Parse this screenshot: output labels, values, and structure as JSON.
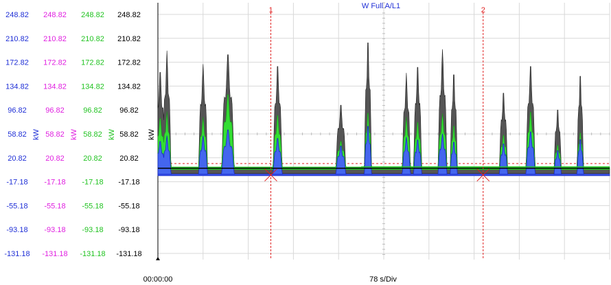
{
  "title": "W Full A/L1",
  "ticks": [
    "248.82",
    "210.82",
    "172.82",
    "134.82",
    "96.82",
    "58.82",
    "20.82",
    "-17.18",
    "-55.18",
    "-93.18",
    "-131.18"
  ],
  "unit": "kW",
  "scale_columns": [
    {
      "color": "#1f2fd6"
    },
    {
      "color": "#e020e0"
    },
    {
      "color": "#22c322"
    },
    {
      "color": "#000000"
    }
  ],
  "time_start": "00:00:00",
  "time_per_div": "78 s/Div",
  "cursors": [
    {
      "label": "1",
      "color": "#e02020"
    },
    {
      "label": "2",
      "color": "#e02020"
    }
  ],
  "chart_data": {
    "type": "line",
    "title": "W Full A/L1",
    "ylim": [
      -131.18,
      248.82
    ],
    "xlim": [
      0,
      10
    ],
    "x_units": "divisions (78 s/Div)",
    "grid": true,
    "cursors_x_div": [
      2.5,
      7.2
    ],
    "reference_lines": [
      {
        "color": "#e02020",
        "y": 11
      },
      {
        "color": "#e02020",
        "y": 0
      },
      {
        "color": "#00aaaa",
        "y": -6
      }
    ],
    "baselines": {
      "black": 4,
      "green": 6,
      "blue": -5
    },
    "peaks": [
      {
        "x": 0.05,
        "black": 150,
        "green": 80,
        "blue": 45,
        "w": 0.22
      },
      {
        "x": 0.2,
        "black": 178,
        "green": 88,
        "blue": 52,
        "w": 0.18
      },
      {
        "x": 1.0,
        "black": 158,
        "green": 80,
        "blue": 52,
        "w": 0.2
      },
      {
        "x": 1.55,
        "black": 175,
        "green": 115,
        "blue": 62,
        "w": 0.28
      },
      {
        "x": 2.65,
        "black": 160,
        "green": 85,
        "blue": 50,
        "w": 0.2
      },
      {
        "x": 4.05,
        "black": 100,
        "green": 45,
        "blue": 38,
        "w": 0.22
      },
      {
        "x": 4.65,
        "black": 200,
        "green": 90,
        "blue": 70,
        "w": 0.16
      },
      {
        "x": 5.5,
        "black": 145,
        "green": 80,
        "blue": 50,
        "w": 0.18
      },
      {
        "x": 5.75,
        "black": 160,
        "green": 75,
        "blue": 48,
        "w": 0.18
      },
      {
        "x": 6.3,
        "black": 180,
        "green": 85,
        "blue": 55,
        "w": 0.2
      },
      {
        "x": 6.55,
        "black": 150,
        "green": 70,
        "blue": 45,
        "w": 0.16
      },
      {
        "x": 7.65,
        "black": 120,
        "green": 55,
        "blue": 42,
        "w": 0.18
      },
      {
        "x": 8.25,
        "black": 160,
        "green": 90,
        "blue": 60,
        "w": 0.2
      },
      {
        "x": 8.85,
        "black": 95,
        "green": 40,
        "blue": 32,
        "w": 0.16
      },
      {
        "x": 9.35,
        "black": 150,
        "green": 60,
        "blue": 50,
        "w": 0.14
      }
    ]
  }
}
